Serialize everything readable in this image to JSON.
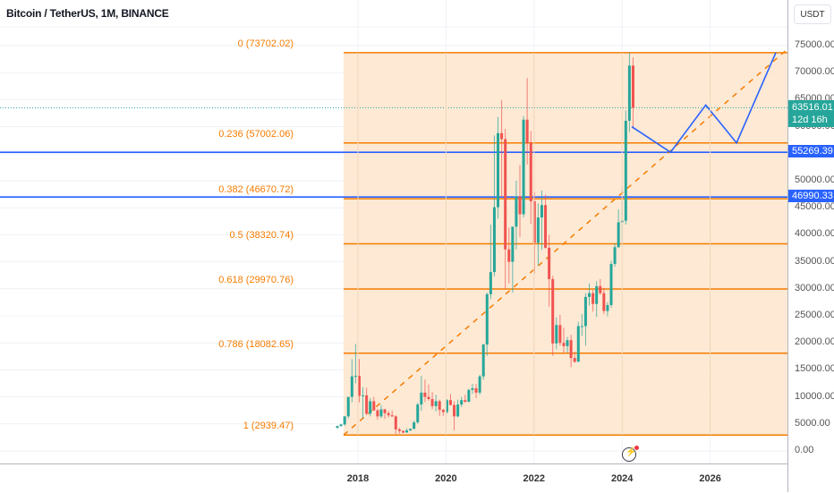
{
  "header": {
    "title": "Bitcoin / TetherUS, 1M, BINANCE"
  },
  "price_axis": {
    "currency": "USDT",
    "ticks": [
      "75000.00",
      "70000.00",
      "65000.00",
      "60000.00",
      "55000.00",
      "50000.00",
      "45000.00",
      "40000.00",
      "35000.00",
      "30000.00",
      "25000.00",
      "20000.00",
      "15000.00",
      "10000.00",
      "5000.00",
      "0.00"
    ],
    "last_price": {
      "value": "63516.01",
      "countdown": "12d 16h",
      "color": "#26a69a"
    },
    "level_badges": [
      {
        "value": "55269.39",
        "color": "#2962ff"
      },
      {
        "value": "46990.33",
        "color": "#2962ff"
      }
    ]
  },
  "time_axis": {
    "ticks": [
      "2018",
      "2020",
      "2022",
      "2024",
      "2026"
    ]
  },
  "colors": {
    "up": "#26a69a",
    "down": "#ef5350",
    "fib": "#f57c00",
    "fib_fill": "#fde5cc",
    "support": "#2962ff",
    "projection": "#2962ff"
  },
  "chart_data": {
    "type": "candlestick",
    "title": "Bitcoin / TetherUS, 1M, BINANCE",
    "xlabel": "",
    "ylabel": "USDT",
    "ylim": [
      0,
      75000
    ],
    "x_ticks": [
      "2018",
      "2020",
      "2022",
      "2024",
      "2026"
    ],
    "fib_retracement": [
      {
        "level": "0",
        "price": 73702.02,
        "label": "0 (73702.02)"
      },
      {
        "level": "0.236",
        "price": 57002.06,
        "label": "0.236 (57002.06)"
      },
      {
        "level": "0.382",
        "price": 46670.72,
        "label": "0.382 (46670.72)"
      },
      {
        "level": "0.5",
        "price": 38320.74,
        "label": "0.5 (38320.74)"
      },
      {
        "level": "0.618",
        "price": 29970.76,
        "label": "0.618 (29970.76)"
      },
      {
        "level": "0.786",
        "price": 18082.65,
        "label": "0.786 (18082.65)"
      },
      {
        "level": "1",
        "price": 2939.47,
        "label": "1 (2939.47)"
      }
    ],
    "horizontal_lines": [
      55269.39,
      46990.33
    ],
    "last_price": 63516.01,
    "projection_path": [
      [
        2024.3,
        60000
      ],
      [
        2025.1,
        55269
      ],
      [
        2025.9,
        64000
      ],
      [
        2026.6,
        57000
      ],
      [
        2027.5,
        73702
      ]
    ],
    "candles_ohlc": [
      [
        4300,
        4700,
        4100,
        4600
      ],
      [
        4600,
        5000,
        4500,
        4900
      ],
      [
        4900,
        6400,
        4700,
        6400
      ],
      [
        6400,
        10000,
        6000,
        10000
      ],
      [
        10000,
        17000,
        9000,
        13800
      ],
      [
        13800,
        19800,
        12500,
        13900
      ],
      [
        13900,
        17000,
        9000,
        10200
      ],
      [
        10200,
        11800,
        6000,
        10300
      ],
      [
        10300,
        11700,
        6600,
        6900
      ],
      [
        6900,
        9800,
        6400,
        9200
      ],
      [
        9200,
        10000,
        7400,
        7500
      ],
      [
        7500,
        7800,
        5800,
        6400
      ],
      [
        6400,
        8500,
        6100,
        7700
      ],
      [
        7700,
        7800,
        5900,
        7000
      ],
      [
        7000,
        7400,
        6200,
        6600
      ],
      [
        6600,
        7500,
        6300,
        6400
      ],
      [
        6400,
        6600,
        3100,
        4000
      ],
      [
        4000,
        4300,
        3200,
        3700
      ],
      [
        3700,
        3800,
        3300,
        3400
      ],
      [
        3400,
        4200,
        3400,
        3800
      ],
      [
        3800,
        4100,
        3700,
        4100
      ],
      [
        4100,
        5600,
        4000,
        5300
      ],
      [
        5300,
        8900,
        5000,
        8600
      ],
      [
        8600,
        13900,
        7400,
        10800
      ],
      [
        10800,
        13200,
        9000,
        10000
      ],
      [
        10000,
        12300,
        9300,
        9600
      ],
      [
        9600,
        10900,
        7700,
        8300
      ],
      [
        8300,
        10400,
        7300,
        9200
      ],
      [
        9200,
        9500,
        6500,
        7600
      ],
      [
        7600,
        7800,
        6500,
        7200
      ],
      [
        7200,
        9600,
        6900,
        9400
      ],
      [
        9400,
        10500,
        8400,
        8500
      ],
      [
        8500,
        9200,
        3800,
        6400
      ],
      [
        6400,
        9500,
        6200,
        8600
      ],
      [
        8600,
        10000,
        8100,
        9400
      ],
      [
        9400,
        10400,
        8900,
        9100
      ],
      [
        9100,
        11500,
        9000,
        11300
      ],
      [
        11300,
        12400,
        10600,
        11600
      ],
      [
        11600,
        12400,
        9800,
        10800
      ],
      [
        10800,
        14100,
        10400,
        13800
      ],
      [
        13800,
        19800,
        13200,
        19700
      ],
      [
        19700,
        29300,
        17600,
        29000
      ],
      [
        29000,
        41900,
        28100,
        33100
      ],
      [
        33100,
        58400,
        32300,
        45100
      ],
      [
        45100,
        61800,
        43000,
        58800
      ],
      [
        58800,
        64900,
        47000,
        57700
      ],
      [
        57700,
        59600,
        30000,
        37300
      ],
      [
        37300,
        41300,
        31000,
        35000
      ],
      [
        35000,
        36600,
        29300,
        41500
      ],
      [
        41500,
        50000,
        37300,
        47100
      ],
      [
        47100,
        52900,
        39600,
        43800
      ],
      [
        43800,
        62000,
        43200,
        61300
      ],
      [
        61300,
        69000,
        53000,
        57000
      ],
      [
        57000,
        59200,
        42000,
        46200
      ],
      [
        46200,
        47900,
        32900,
        38500
      ],
      [
        38500,
        45800,
        34300,
        43200
      ],
      [
        43200,
        48200,
        37200,
        45500
      ],
      [
        45500,
        47400,
        37400,
        37600
      ],
      [
        37600,
        40000,
        26700,
        31800
      ],
      [
        31800,
        32400,
        17600,
        19900
      ],
      [
        19900,
        24700,
        18800,
        23300
      ],
      [
        23300,
        25200,
        19500,
        20000
      ],
      [
        20000,
        22800,
        18200,
        19400
      ],
      [
        19400,
        21100,
        18200,
        20500
      ],
      [
        20500,
        21500,
        15500,
        17200
      ],
      [
        17200,
        18400,
        16300,
        16500
      ],
      [
        16500,
        23900,
        16500,
        23100
      ],
      [
        23100,
        25300,
        21300,
        23100
      ],
      [
        23100,
        29200,
        19500,
        28500
      ],
      [
        28500,
        31000,
        26900,
        29200
      ],
      [
        29200,
        29800,
        25800,
        27200
      ],
      [
        27200,
        31400,
        24800,
        30500
      ],
      [
        30500,
        31800,
        28900,
        29200
      ],
      [
        29200,
        30200,
        25300,
        25900
      ],
      [
        25900,
        27500,
        24900,
        27000
      ],
      [
        27000,
        35200,
        26500,
        34600
      ],
      [
        34600,
        38400,
        34100,
        37700
      ],
      [
        37700,
        44700,
        37600,
        42300
      ],
      [
        42300,
        48900,
        38500,
        42600
      ],
      [
        42600,
        63000,
        41900,
        61100
      ],
      [
        61100,
        73700,
        59000,
        71300
      ],
      [
        71300,
        72800,
        59600,
        63516
      ]
    ]
  }
}
